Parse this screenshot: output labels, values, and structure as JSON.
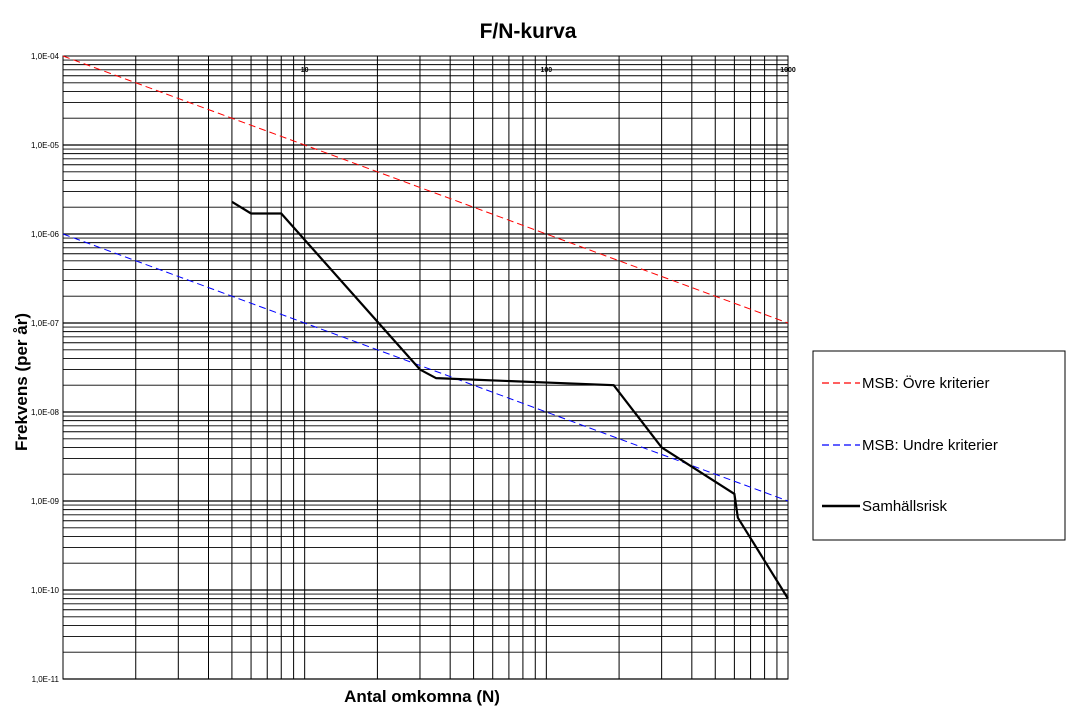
{
  "chart_data": {
    "type": "line",
    "title": "F/N-kurva",
    "xlabel": "Antal omkomna (N)",
    "ylabel": "Frekvens (per år)",
    "x_scale": "log",
    "y_scale": "log",
    "xlim": [
      1,
      1000
    ],
    "ylim": [
      1e-11,
      0.0001
    ],
    "x_tick_labels": [
      {
        "value": 10,
        "label": "10"
      },
      {
        "value": 100,
        "label": "100"
      },
      {
        "value": 1000,
        "label": "1000"
      }
    ],
    "y_tick_labels": [
      {
        "value": 0.0001,
        "label": "1,0E-04"
      },
      {
        "value": 1e-05,
        "label": "1,0E-05"
      },
      {
        "value": 1e-06,
        "label": "1,0E-06"
      },
      {
        "value": 1e-07,
        "label": "1,0E-07"
      },
      {
        "value": 1e-08,
        "label": "1,0E-08"
      },
      {
        "value": 1e-09,
        "label": "1,0E-09"
      },
      {
        "value": 1e-10,
        "label": "1,0E-10"
      },
      {
        "value": 1e-11,
        "label": "1,0E-11"
      }
    ],
    "grid": true,
    "legend_position": "right",
    "series": [
      {
        "name": "MSB: Övre kriterier",
        "color": "#ff0000",
        "dash": true,
        "x": [
          1,
          1000
        ],
        "y": [
          0.0001,
          1e-07
        ]
      },
      {
        "name": "MSB: Undre kriterier",
        "color": "#0000ff",
        "dash": true,
        "x": [
          1,
          1000
        ],
        "y": [
          1e-06,
          1e-09
        ]
      },
      {
        "name": "Samhällsrisk",
        "color": "#000000",
        "dash": false,
        "x": [
          5,
          6,
          8,
          30,
          35,
          190,
          300,
          600,
          620,
          1000
        ],
        "y": [
          2.3e-06,
          1.7e-06,
          1.7e-06,
          3e-08,
          2.4e-08,
          2e-08,
          4e-09,
          1.2e-09,
          6.5e-10,
          8e-11
        ]
      }
    ]
  }
}
